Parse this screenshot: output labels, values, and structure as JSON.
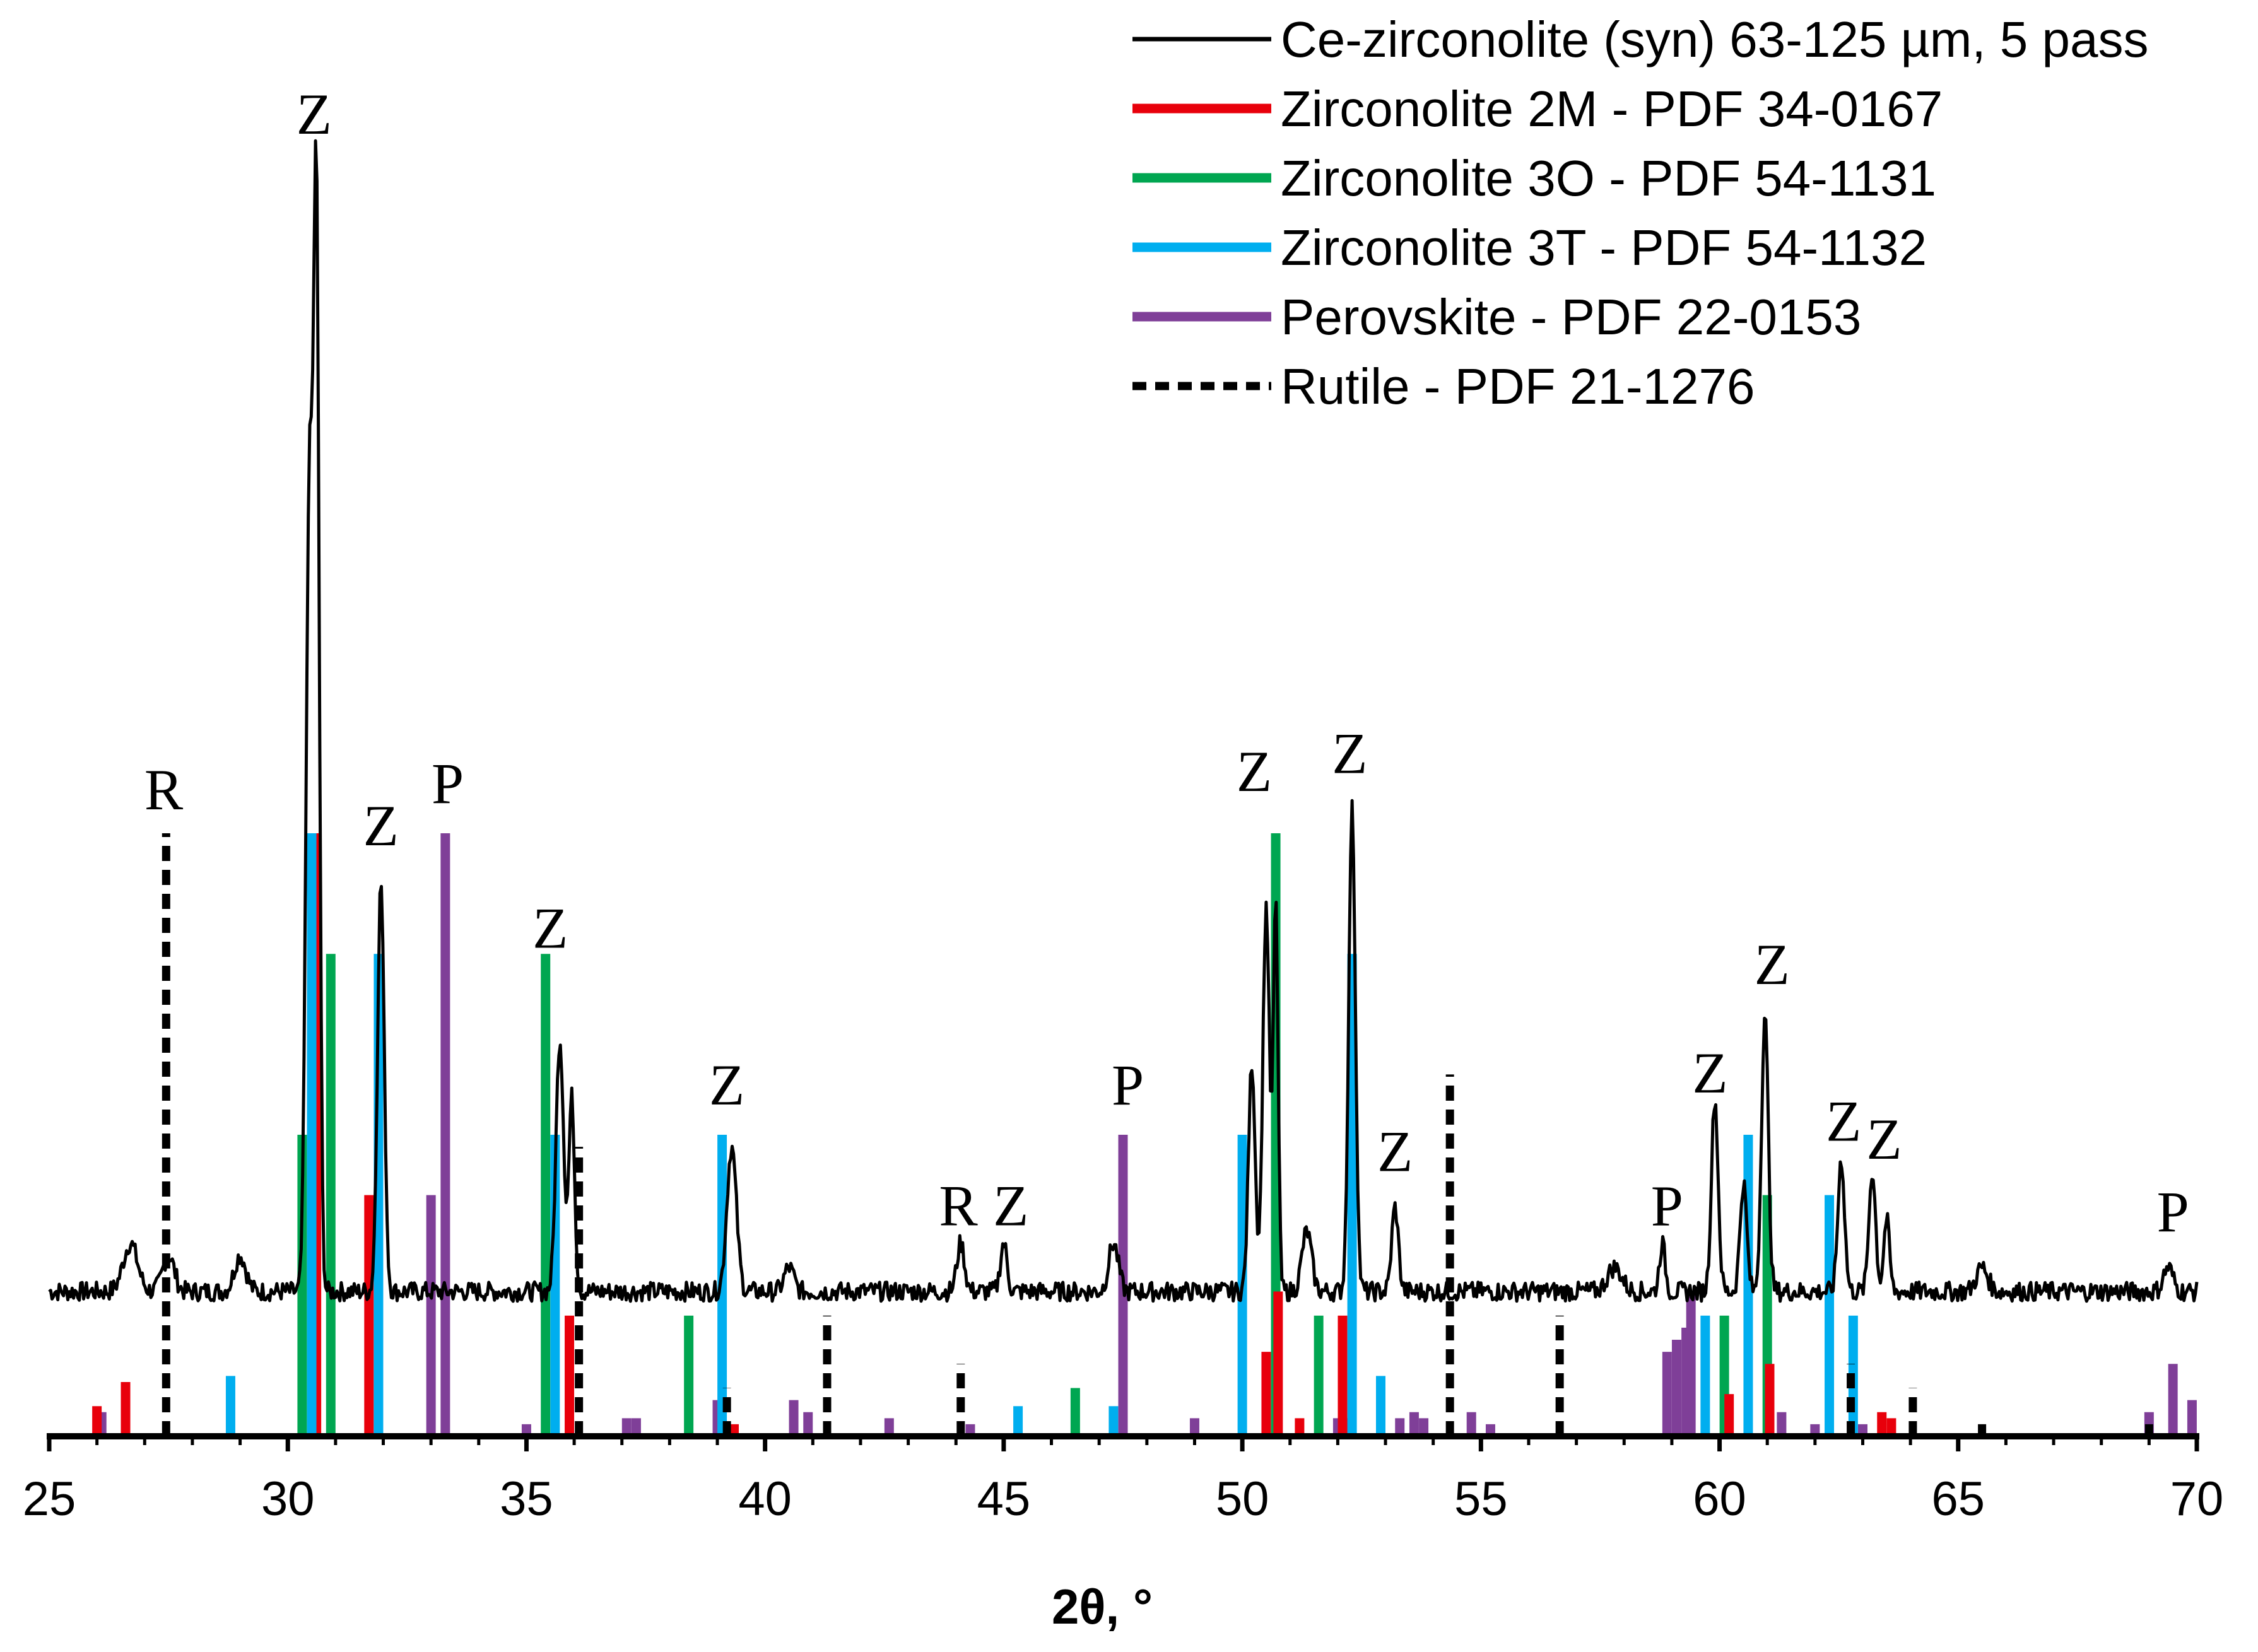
{
  "chart_data": {
    "type": "line",
    "title": "",
    "xlabel": "2θ, °",
    "ylabel": "",
    "xlim": [
      25,
      70
    ],
    "ylim": [
      0,
      100
    ],
    "grid": false,
    "x_ticks": [
      "25",
      "30",
      "35",
      "40",
      "45",
      "50",
      "55",
      "60",
      "65",
      "70"
    ],
    "legend": {
      "placement": "top-right",
      "entries": [
        {
          "label": "Ce-zirconolite (syn) 63-125 µm, 5 pass",
          "color": "#000000",
          "style": "solid-thin"
        },
        {
          "label": "Zirconolite 2M - PDF 34-0167",
          "color": "#e8000b",
          "style": "solid"
        },
        {
          "label": "Zirconolite 3O - PDF 54-1131",
          "color": "#00a651",
          "style": "solid"
        },
        {
          "label": "Zirconolite 3T - PDF 54-1132",
          "color": "#00aeef",
          "style": "solid"
        },
        {
          "label": "Perovskite - PDF 22-0153",
          "color": "#7f3f98",
          "style": "solid"
        },
        {
          "label": "Rutile - PDF 21-1276",
          "color": "#000000",
          "style": "dashed"
        }
      ]
    },
    "series": [
      {
        "name": "Ce-zirconolite (syn) 63-125 µm, 5 pass",
        "type": "line",
        "baseline": 12,
        "peaks": [
          {
            "x": 26.7,
            "y": 16,
            "w": 0.15
          },
          {
            "x": 27.5,
            "y": 15,
            "w": 0.12
          },
          {
            "x": 29.0,
            "y": 15,
            "w": 0.12
          },
          {
            "x": 30.45,
            "y": 78,
            "w": 0.07
          },
          {
            "x": 30.6,
            "y": 100,
            "w": 0.06
          },
          {
            "x": 31.95,
            "y": 46,
            "w": 0.07
          },
          {
            "x": 35.7,
            "y": 33,
            "w": 0.08
          },
          {
            "x": 35.95,
            "y": 28,
            "w": 0.06
          },
          {
            "x": 39.3,
            "y": 24,
            "w": 0.1
          },
          {
            "x": 40.5,
            "y": 14,
            "w": 0.1
          },
          {
            "x": 44.1,
            "y": 16,
            "w": 0.08
          },
          {
            "x": 45.0,
            "y": 16,
            "w": 0.07
          },
          {
            "x": 47.3,
            "y": 16,
            "w": 0.1
          },
          {
            "x": 50.2,
            "y": 31,
            "w": 0.07
          },
          {
            "x": 50.5,
            "y": 44,
            "w": 0.07
          },
          {
            "x": 50.7,
            "y": 44,
            "w": 0.05
          },
          {
            "x": 51.35,
            "y": 17,
            "w": 0.1
          },
          {
            "x": 52.3,
            "y": 52,
            "w": 0.07
          },
          {
            "x": 53.2,
            "y": 19,
            "w": 0.07
          },
          {
            "x": 57.8,
            "y": 14,
            "w": 0.15
          },
          {
            "x": 58.8,
            "y": 16,
            "w": 0.06
          },
          {
            "x": 59.9,
            "y": 28,
            "w": 0.07
          },
          {
            "x": 60.5,
            "y": 21,
            "w": 0.07
          },
          {
            "x": 60.95,
            "y": 35,
            "w": 0.07
          },
          {
            "x": 62.55,
            "y": 23,
            "w": 0.07
          },
          {
            "x": 63.2,
            "y": 22,
            "w": 0.07
          },
          {
            "x": 63.5,
            "y": 18,
            "w": 0.06
          },
          {
            "x": 65.5,
            "y": 14,
            "w": 0.12
          },
          {
            "x": 69.4,
            "y": 14,
            "w": 0.1
          }
        ]
      },
      {
        "name": "Zirconolite 2M - PDF 34-0167",
        "type": "stick",
        "x": [
          26.0,
          26.6,
          30.6,
          31.7,
          35.9,
          39.35,
          50.5,
          50.75,
          51.2,
          52.1,
          60.2,
          61.05,
          63.4,
          63.6
        ],
        "y": [
          2.5,
          4.5,
          50,
          20,
          10,
          1,
          7,
          12,
          1.5,
          10,
          3.5,
          6,
          2,
          1.5
        ]
      },
      {
        "name": "Zirconolite 3O - PDF 54-1131",
        "type": "stick",
        "x": [
          30.3,
          30.9,
          35.4,
          38.4,
          46.5,
          50.7,
          51.6,
          60.1,
          61.0
        ],
        "y": [
          25,
          40,
          40,
          10,
          4,
          50,
          10,
          10,
          20
        ]
      },
      {
        "name": "Zirconolite 3T - PDF 54-1132",
        "type": "stick",
        "x": [
          28.8,
          30.5,
          31.9,
          35.6,
          39.1,
          45.3,
          47.3,
          50.0,
          52.3,
          52.9,
          59.7,
          60.6,
          62.3,
          62.8
        ],
        "y": [
          5,
          50,
          40,
          25,
          25,
          2.5,
          2.5,
          25,
          40,
          5,
          10,
          25,
          20,
          10
        ]
      },
      {
        "name": "Perovskite - PDF 22-0153",
        "type": "stick",
        "x": [
          26.1,
          33.0,
          33.3,
          35.0,
          37.1,
          37.3,
          39.0,
          40.6,
          40.9,
          42.6,
          44.3,
          47.5,
          49.0,
          52.0,
          52.2,
          53.3,
          53.6,
          53.8,
          54.8,
          55.2,
          58.9,
          59.1,
          59.3,
          59.4,
          61.3,
          62.0,
          63.0,
          69.0,
          69.5,
          69.9
        ],
        "y": [
          2,
          20,
          50,
          1,
          1.5,
          1.5,
          3,
          3,
          2,
          1.5,
          1,
          25,
          1.5,
          1.5,
          1.5,
          1.5,
          2,
          1.5,
          2,
          1,
          7,
          8,
          9,
          12,
          2,
          1,
          1,
          2,
          6,
          3
        ]
      },
      {
        "name": "Rutile - PDF 21-1276",
        "type": "stick-dashed",
        "x": [
          27.45,
          36.1,
          39.2,
          41.3,
          44.1,
          54.35,
          56.65,
          62.75,
          64.05,
          65.5,
          69.0
        ],
        "y": [
          50,
          24,
          4,
          10,
          6,
          30,
          10,
          6,
          4,
          1,
          1
        ]
      }
    ],
    "annotations": [
      {
        "text": "Z",
        "x": 30.55,
        "y": 108
      },
      {
        "text": "R",
        "x": 27.4,
        "y": 52
      },
      {
        "text": "Z",
        "x": 31.95,
        "y": 49
      },
      {
        "text": "P",
        "x": 33.35,
        "y": 52.5
      },
      {
        "text": "Z",
        "x": 35.5,
        "y": 40.5
      },
      {
        "text": "Z",
        "x": 39.2,
        "y": 27.5
      },
      {
        "text": "R",
        "x": 44.05,
        "y": 17.5
      },
      {
        "text": "Z",
        "x": 45.15,
        "y": 17.5
      },
      {
        "text": "P",
        "x": 47.6,
        "y": 27.5
      },
      {
        "text": "Z",
        "x": 50.25,
        "y": 53.5
      },
      {
        "text": "Z",
        "x": 52.25,
        "y": 55
      },
      {
        "text": "Z",
        "x": 53.2,
        "y": 22
      },
      {
        "text": "P",
        "x": 58.9,
        "y": 17.5
      },
      {
        "text": "Z",
        "x": 59.8,
        "y": 28.5
      },
      {
        "text": "Z",
        "x": 61.1,
        "y": 37.5
      },
      {
        "text": "Z",
        "x": 62.6,
        "y": 24.5
      },
      {
        "text": "Z",
        "x": 63.45,
        "y": 23
      },
      {
        "text": "P",
        "x": 69.5,
        "y": 17
      }
    ]
  }
}
